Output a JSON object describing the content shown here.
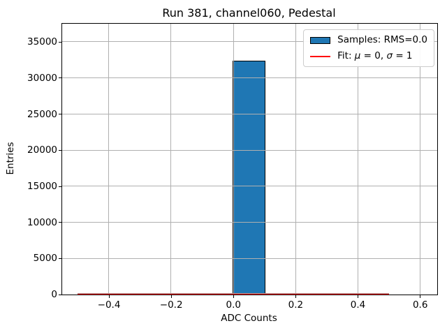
{
  "figure": {
    "background": "#ffffff"
  },
  "chart_data": {
    "type": "bar",
    "title": "Run 381, channel060, Pedestal",
    "xlabel": "ADC Counts",
    "ylabel": "Entries",
    "xlim": [
      -0.55,
      0.655
    ],
    "ylim": [
      0,
      37500
    ],
    "grid": true,
    "legend_position": "upper right",
    "xticks": [
      {
        "v": -0.4,
        "label": "−0.4"
      },
      {
        "v": -0.2,
        "label": "−0.2"
      },
      {
        "v": 0.0,
        "label": "0.0"
      },
      {
        "v": 0.2,
        "label": "0.2"
      },
      {
        "v": 0.4,
        "label": "0.4"
      },
      {
        "v": 0.6,
        "label": "0.6"
      }
    ],
    "yticks": [
      {
        "v": 0,
        "label": "0"
      },
      {
        "v": 5000,
        "label": "5000"
      },
      {
        "v": 10000,
        "label": "10000"
      },
      {
        "v": 15000,
        "label": "15000"
      },
      {
        "v": 20000,
        "label": "20000"
      },
      {
        "v": 25000,
        "label": "25000"
      },
      {
        "v": 30000,
        "label": "30000"
      },
      {
        "v": 35000,
        "label": "35000"
      }
    ],
    "histogram": {
      "range": [
        -0.5,
        0.5
      ],
      "bin_width": 0.1,
      "bars": [
        {
          "x_start": 0.0,
          "x_end": 0.1,
          "value": 32350
        }
      ],
      "zero_bins_baseline": {
        "x_start": -0.5,
        "x_end": 0.5,
        "value": 0
      }
    },
    "fit": {
      "mu": 0,
      "sigma": 1,
      "x_start": -0.5,
      "x_end": 0.5
    },
    "colors": {
      "bar_fill": "#1f77b4",
      "bar_edge": "#000000",
      "fit_line": "#ff0000",
      "grid": "#b0b0b0",
      "axis": "#000000",
      "zero_bin_edge": "#9c9c9c"
    }
  },
  "legend": {
    "samples_label": "Samples: RMS=0.0",
    "fit_parts": {
      "prefix": "Fit: ",
      "mu": "μ",
      "mid": " = 0, ",
      "sigma": "σ",
      "suffix": " = 1"
    }
  }
}
